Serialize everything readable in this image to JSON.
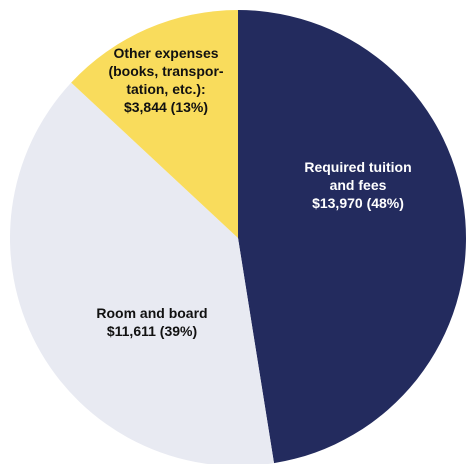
{
  "chart_data": {
    "type": "pie",
    "categories": [
      "Required tuition and fees",
      "Room and board",
      "Other expenses (books, transpor-tation, etc.):"
    ],
    "values": [
      13970,
      11611,
      3844
    ],
    "value_labels": [
      "$13,970 (48%)",
      "$11,611 (39%)",
      "$3,844 (13%)"
    ],
    "colors": [
      "#232b5e",
      "#e8eaf2",
      "#f9dc5c"
    ],
    "label_colors": [
      "#ffffff",
      "#111111",
      "#111111"
    ]
  }
}
